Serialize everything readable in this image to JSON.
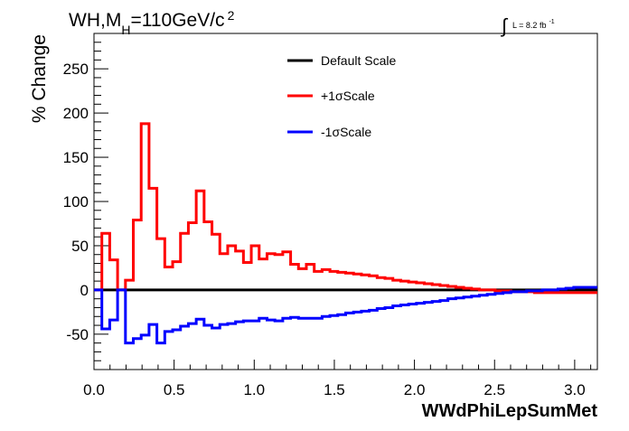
{
  "chart_data": {
    "type": "line",
    "title": "WH,M",
    "title_sub": "H",
    "title_rest": "=110GeV/c",
    "title_sup": "2",
    "lumi_label": "L = 8.2 fb",
    "lumi_sup": "-1",
    "xlabel": "WWdPhiLepSumMet",
    "ylabel": "% Change",
    "xlim": [
      0.0,
      3.14159
    ],
    "ylim": [
      -90,
      290
    ],
    "x_ticks": [
      0.0,
      0.5,
      1.0,
      1.5,
      2.0,
      2.5,
      3.0
    ],
    "x_tick_labels": [
      "0.0",
      "0.5",
      "1.0",
      "1.5",
      "2.0",
      "2.5",
      "3.0"
    ],
    "y_ticks": [
      -50,
      0,
      50,
      100,
      150,
      200,
      250
    ],
    "y_tick_labels": [
      "-50",
      "0",
      "50",
      "100",
      "150",
      "200",
      "250"
    ],
    "grid": false,
    "legend_position": "top-right",
    "series": [
      {
        "name": "Default Scale",
        "color": "#000000",
        "values": [
          0,
          0,
          0,
          0,
          0,
          0,
          0,
          0,
          0,
          0,
          0,
          0,
          0,
          0,
          0,
          0,
          0,
          0,
          0,
          0,
          0,
          0,
          0,
          0,
          0,
          0,
          0,
          0,
          0,
          0,
          0,
          0,
          0,
          0,
          0,
          0,
          0,
          0,
          0,
          0,
          0,
          0,
          0,
          0,
          0,
          0,
          0,
          0,
          0,
          0,
          0,
          0,
          0,
          0,
          0,
          0,
          0,
          0,
          0,
          0,
          0,
          0,
          0,
          0
        ]
      },
      {
        "name": "+1σScale",
        "color": "#ff0000",
        "values": [
          0,
          64,
          34,
          0,
          11,
          79,
          188,
          115,
          58,
          26,
          32,
          64,
          76,
          112,
          77,
          63,
          41,
          50,
          44,
          31,
          50,
          35,
          41,
          40,
          43,
          29,
          24,
          29,
          21,
          23,
          21,
          20,
          19,
          18,
          17,
          16,
          14,
          13,
          11,
          10,
          9,
          8,
          7,
          6,
          5,
          4,
          3,
          2,
          1,
          0,
          0,
          -1,
          -1,
          -2,
          -2,
          -2,
          -3,
          -3,
          -3,
          -3,
          -3,
          -3,
          -3,
          -3
        ]
      },
      {
        "name": "-1σScale",
        "color": "#0000ff",
        "values": [
          0,
          -44,
          -34,
          0,
          -60,
          -55,
          -51,
          -39,
          -60,
          -47,
          -45,
          -41,
          -38,
          -33,
          -40,
          -43,
          -39,
          -38,
          -36,
          -35,
          -35,
          -32,
          -34,
          -35,
          -32,
          -31,
          -32,
          -32,
          -32,
          -30,
          -29,
          -28,
          -26,
          -25,
          -24,
          -23,
          -21,
          -20,
          -18,
          -17,
          -16,
          -15,
          -14,
          -13,
          -12,
          -10,
          -9,
          -8,
          -7,
          -6,
          -5,
          -4,
          -3,
          -2,
          -2,
          -1,
          -1,
          0,
          0,
          1,
          2,
          3,
          3,
          3
        ]
      }
    ],
    "bin_width": 0.049087
  }
}
